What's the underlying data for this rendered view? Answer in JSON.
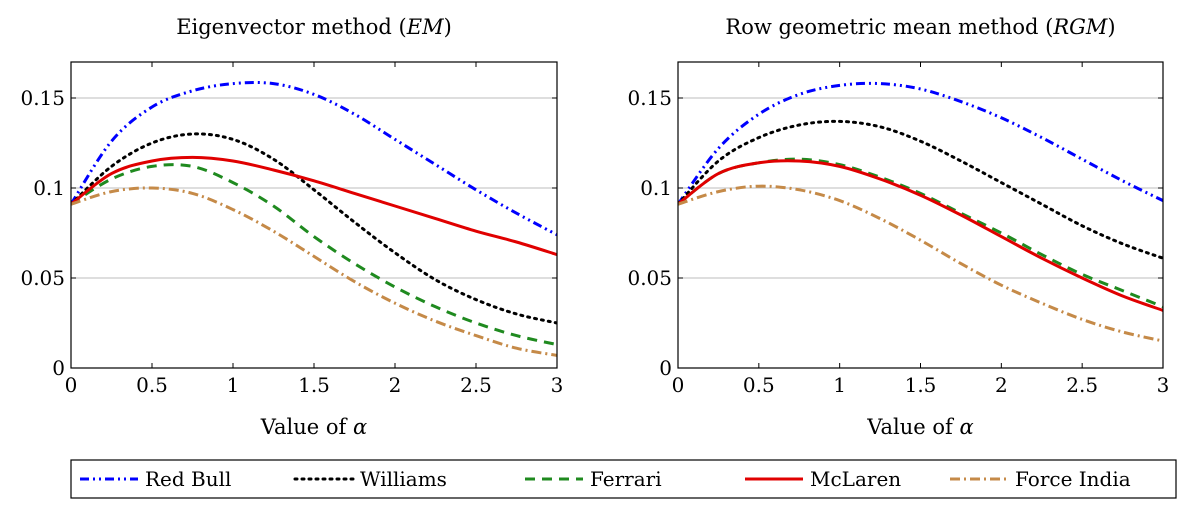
{
  "chart_data": [
    {
      "type": "line",
      "title_prefix": "Eigenvector method (",
      "title_symbol": "EM",
      "title_suffix": ")",
      "xlabel_prefix": "Value of ",
      "xlabel_symbol": "α",
      "ylabel": "",
      "xlim": [
        0,
        3
      ],
      "ylim": [
        0,
        0.17
      ],
      "xticks": [
        0,
        0.5,
        1,
        1.5,
        2,
        2.5,
        3
      ],
      "xtick_labels": [
        "0",
        "0.5",
        "1",
        "1.5",
        "2",
        "2.5",
        "3"
      ],
      "yticks": [
        0,
        0.05,
        0.1,
        0.15
      ],
      "ytick_labels": [
        "0",
        "0.05",
        "0.1",
        "0.15"
      ],
      "grid": "horizontal",
      "x": [
        0,
        0.25,
        0.5,
        0.75,
        1,
        1.25,
        1.5,
        1.75,
        2,
        2.25,
        2.5,
        2.75,
        3
      ],
      "series": [
        {
          "name": "Red Bull",
          "values": [
            0.091,
            0.126,
            0.145,
            0.154,
            0.158,
            0.158,
            0.152,
            0.141,
            0.127,
            0.113,
            0.099,
            0.086,
            0.074
          ]
        },
        {
          "name": "Williams",
          "values": [
            0.091,
            0.112,
            0.125,
            0.13,
            0.127,
            0.116,
            0.099,
            0.081,
            0.064,
            0.049,
            0.038,
            0.03,
            0.025
          ]
        },
        {
          "name": "Ferrari",
          "values": [
            0.091,
            0.105,
            0.112,
            0.112,
            0.103,
            0.09,
            0.073,
            0.058,
            0.045,
            0.034,
            0.025,
            0.018,
            0.013
          ]
        },
        {
          "name": "McLaren",
          "values": [
            0.091,
            0.108,
            0.115,
            0.117,
            0.115,
            0.11,
            0.104,
            0.097,
            0.09,
            0.083,
            0.076,
            0.07,
            0.063
          ]
        },
        {
          "name": "Force India",
          "values": [
            0.091,
            0.098,
            0.1,
            0.097,
            0.088,
            0.076,
            0.062,
            0.048,
            0.036,
            0.026,
            0.018,
            0.011,
            0.007
          ]
        }
      ]
    },
    {
      "type": "line",
      "title_prefix": "Row geometric mean method (",
      "title_symbol": "RGM",
      "title_suffix": ")",
      "xlabel_prefix": "Value of ",
      "xlabel_symbol": "α",
      "ylabel": "",
      "xlim": [
        0,
        3
      ],
      "ylim": [
        0,
        0.17
      ],
      "xticks": [
        0,
        0.5,
        1,
        1.5,
        2,
        2.5,
        3
      ],
      "xtick_labels": [
        "0",
        "0.5",
        "1",
        "1.5",
        "2",
        "2.5",
        "3"
      ],
      "yticks": [
        0,
        0.05,
        0.1,
        0.15
      ],
      "ytick_labels": [
        "0",
        "0.05",
        "0.1",
        "0.15"
      ],
      "grid": "horizontal",
      "x": [
        0,
        0.25,
        0.5,
        0.75,
        1,
        1.25,
        1.5,
        1.75,
        2,
        2.25,
        2.5,
        2.75,
        3
      ],
      "series": [
        {
          "name": "Red Bull",
          "values": [
            0.091,
            0.122,
            0.141,
            0.152,
            0.157,
            0.158,
            0.155,
            0.148,
            0.139,
            0.128,
            0.116,
            0.104,
            0.093
          ]
        },
        {
          "name": "Williams",
          "values": [
            0.091,
            0.115,
            0.128,
            0.135,
            0.137,
            0.134,
            0.126,
            0.115,
            0.103,
            0.091,
            0.079,
            0.069,
            0.061
          ]
        },
        {
          "name": "Ferrari",
          "values": [
            0.091,
            0.108,
            0.114,
            0.116,
            0.113,
            0.106,
            0.097,
            0.086,
            0.075,
            0.063,
            0.052,
            0.043,
            0.034
          ]
        },
        {
          "name": "McLaren",
          "values": [
            0.091,
            0.108,
            0.114,
            0.115,
            0.112,
            0.105,
            0.096,
            0.085,
            0.073,
            0.061,
            0.05,
            0.04,
            0.032
          ]
        },
        {
          "name": "Force India",
          "values": [
            0.091,
            0.098,
            0.101,
            0.099,
            0.093,
            0.083,
            0.071,
            0.058,
            0.046,
            0.036,
            0.027,
            0.02,
            0.015
          ]
        }
      ]
    }
  ],
  "legend": {
    "placement": "bottom",
    "entries": [
      {
        "name": "Red Bull",
        "color": "#0000ff",
        "dash": "dash-dot-dot"
      },
      {
        "name": "Williams",
        "color": "#000000",
        "dash": "dotted"
      },
      {
        "name": "Ferrari",
        "color": "#1f8a1f",
        "dash": "dashed"
      },
      {
        "name": "McLaren",
        "color": "#e00000",
        "dash": "solid"
      },
      {
        "name": "Force India",
        "color": "#c58a48",
        "dash": "dash-dot"
      }
    ]
  }
}
